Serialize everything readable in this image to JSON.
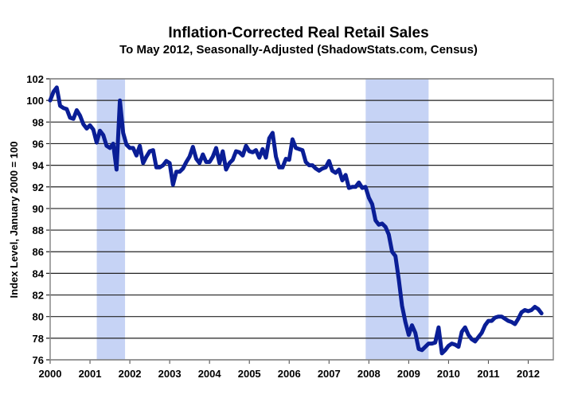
{
  "chart_data": {
    "type": "line",
    "title": "Inflation-Corrected Real Retail Sales",
    "subtitle": "To May 2012, Seasonally-Adjusted (ShadowStats.com, Census)",
    "xlabel": "",
    "ylabel": "Index Level, January 2000 = 100",
    "ylim": [
      76,
      102
    ],
    "xlim": [
      2000,
      2012.63
    ],
    "y_ticks": [
      "76",
      "78",
      "80",
      "82",
      "84",
      "86",
      "88",
      "90",
      "92",
      "94",
      "96",
      "98",
      "100",
      "102"
    ],
    "x_ticks": [
      "2000",
      "2001",
      "2002",
      "2003",
      "2004",
      "2005",
      "2006",
      "2007",
      "2008",
      "2009",
      "2010",
      "2011",
      "2012"
    ],
    "grid": "horizontal",
    "line_color": "#0a1e96",
    "recession_color": "#c6d3f5",
    "recessions": [
      [
        2001.17,
        2001.88
      ],
      [
        2007.92,
        2009.5
      ]
    ],
    "start": 2000,
    "frequency": "monthly",
    "series": [
      {
        "name": "Real Retail Sales",
        "values": [
          100,
          100.8,
          101.2,
          99.5,
          99.3,
          99.2,
          98.4,
          98.3,
          99.1,
          98.6,
          97.8,
          97.4,
          97.7,
          97.3,
          96.1,
          97.2,
          96.8,
          95.8,
          95.6,
          96.0,
          93.6,
          100.0,
          97.0,
          95.9,
          95.6,
          95.6,
          94.9,
          95.8,
          94.2,
          94.8,
          95.3,
          95.4,
          93.8,
          93.8,
          94.0,
          94.4,
          94.2,
          92.2,
          93.4,
          93.4,
          93.7,
          94.3,
          94.8,
          95.7,
          94.6,
          94.2,
          95.0,
          94.3,
          94.3,
          94.8,
          95.6,
          94.2,
          95.3,
          93.6,
          94.2,
          94.5,
          95.3,
          95.2,
          94.9,
          95.8,
          95.3,
          95.2,
          95.4,
          94.7,
          95.5,
          94.7,
          96.5,
          97.0,
          94.8,
          93.8,
          93.8,
          94.6,
          94.5,
          96.4,
          95.6,
          95.5,
          95.4,
          94.3,
          94.0,
          94.0,
          93.7,
          93.5,
          93.7,
          93.8,
          94.4,
          93.5,
          93.3,
          93.6,
          92.6,
          93.1,
          91.9,
          92.0,
          92.0,
          92.4,
          91.9,
          92.0,
          91.0,
          90.4,
          88.9,
          88.5,
          88.6,
          88.3,
          87.6,
          86.0,
          85.6,
          83.5,
          81.0,
          79.5,
          78.3,
          79.2,
          78.5,
          77.0,
          76.9,
          77.2,
          77.5,
          77.5,
          77.6,
          79.0,
          76.6,
          76.9,
          77.3,
          77.5,
          77.4,
          77.2,
          78.6,
          79.0,
          78.3,
          77.9,
          77.7,
          78.1,
          78.5,
          79.2,
          79.6,
          79.6,
          79.9,
          80.0,
          80.0,
          79.8,
          79.6,
          79.5,
          79.3,
          79.8,
          80.4,
          80.6,
          80.5,
          80.6,
          80.9,
          80.7,
          80.3
        ]
      }
    ]
  }
}
